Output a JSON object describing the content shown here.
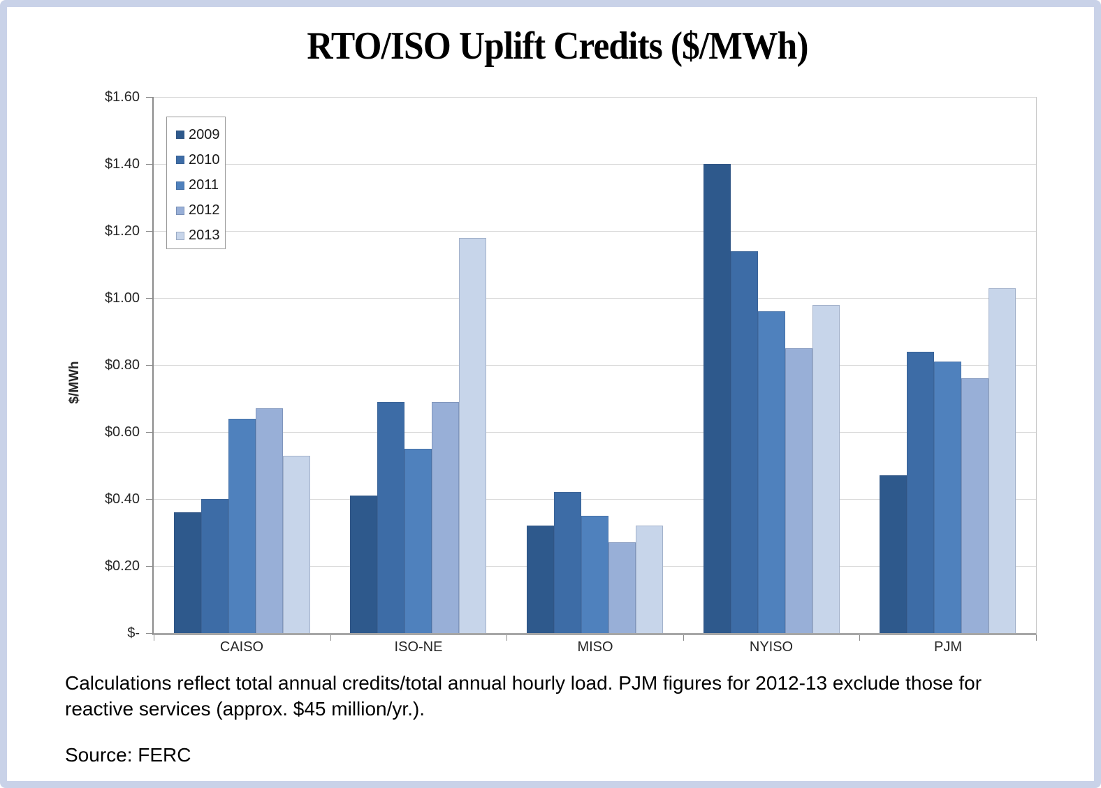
{
  "page": {
    "title": "RTO/ISO Uplift Credits ($/MWh)",
    "footnote": "Calculations reflect total annual credits/total annual hourly load. PJM figures for 2012-13 exclude those for reactive services (approx. $45 million/yr.).",
    "source": "Source: FERC"
  },
  "chart_data": {
    "type": "bar",
    "title": "RTO/ISO Uplift Credits ($/MWh)",
    "categories": [
      "CAISO",
      "ISO-NE",
      "MISO",
      "NYISO",
      "PJM"
    ],
    "series": [
      {
        "name": "2009",
        "color": "#2e598c",
        "values": [
          0.36,
          0.41,
          0.32,
          1.4,
          0.47
        ]
      },
      {
        "name": "2010",
        "color": "#3d6ca6",
        "values": [
          0.4,
          0.69,
          0.42,
          1.14,
          0.84
        ]
      },
      {
        "name": "2011",
        "color": "#4f81bd",
        "values": [
          0.64,
          0.55,
          0.35,
          0.96,
          0.81
        ]
      },
      {
        "name": "2012",
        "color": "#98afd7",
        "values": [
          0.67,
          0.69,
          0.27,
          0.85,
          0.76
        ]
      },
      {
        "name": "2013",
        "color": "#c7d5ea",
        "values": [
          0.53,
          1.18,
          0.32,
          0.98,
          1.03
        ]
      }
    ],
    "xlabel": "",
    "ylabel": "$/MWh",
    "ylim": [
      0,
      1.6
    ],
    "ytick_step": 0.2,
    "ytick_labels": [
      "$-",
      "$0.20",
      "$0.40",
      "$0.60",
      "$0.80",
      "$1.00",
      "$1.20",
      "$1.40",
      "$1.60"
    ],
    "grid": true,
    "legend_position": "upper-left-inside"
  }
}
